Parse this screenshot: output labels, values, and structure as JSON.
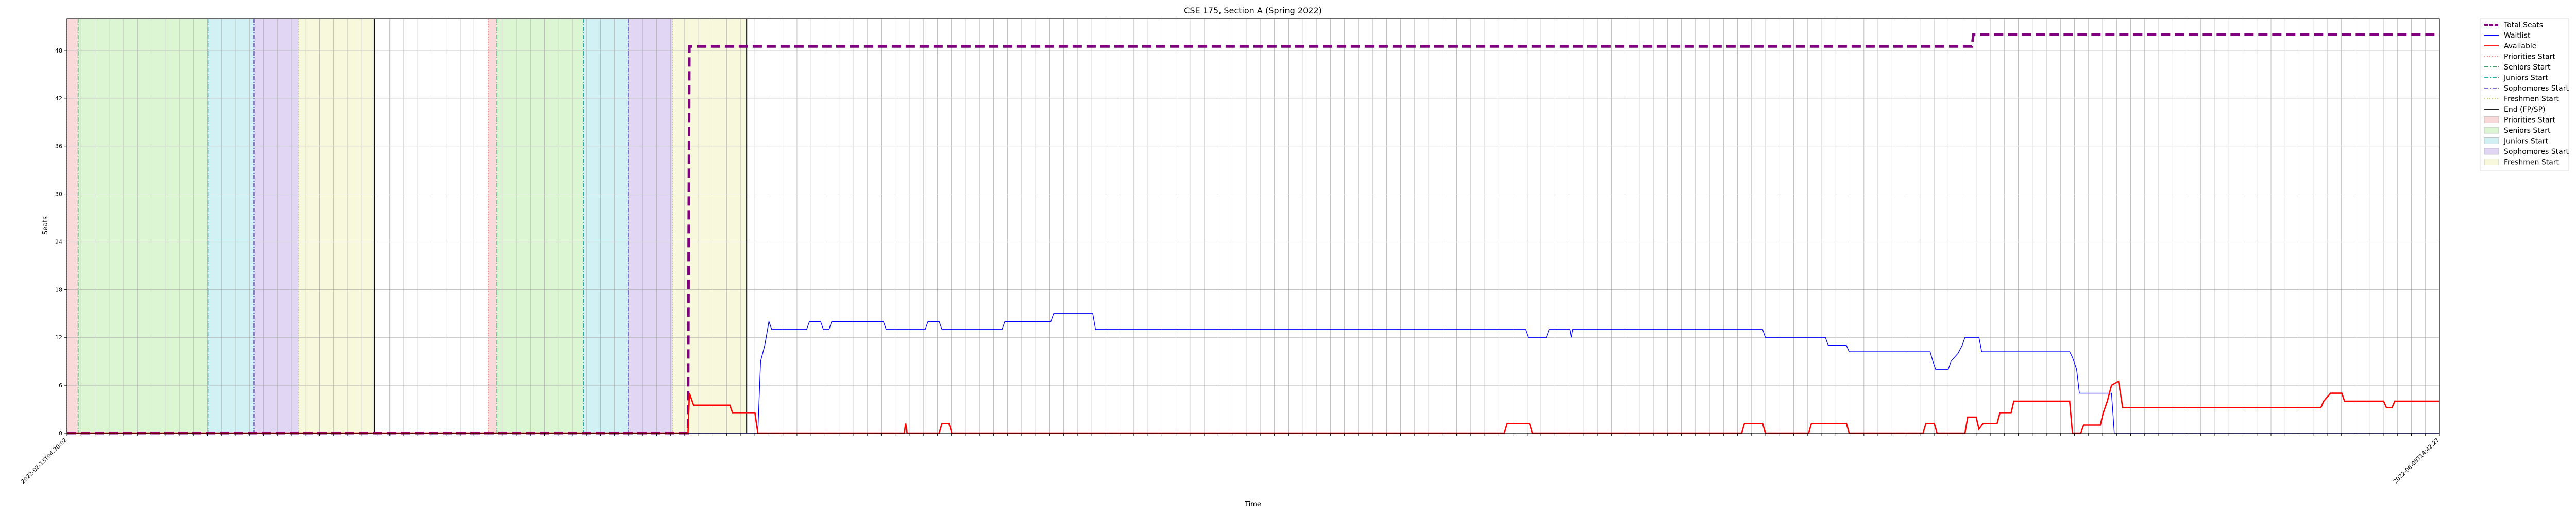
{
  "chart_data": {
    "type": "line",
    "title": "CSE 175, Section A (Spring 2022)",
    "xlabel": "Time",
    "ylabel": "Seats",
    "ylim": [
      0,
      52
    ],
    "yticks": [
      0,
      6,
      12,
      18,
      24,
      30,
      36,
      42,
      48
    ],
    "grid": true,
    "legend_placement": "outside-right",
    "legend": [
      {
        "label": "Total Seats",
        "kind": "line",
        "color": "#800080",
        "dash": "dashed",
        "heavy": true
      },
      {
        "label": "Waitlist",
        "kind": "line",
        "color": "#0000ff"
      },
      {
        "label": "Available",
        "kind": "line",
        "color": "#ff0000"
      },
      {
        "label": "Priorities Start",
        "kind": "line",
        "color": "#ff8080",
        "dash": "dotted"
      },
      {
        "label": "Seniors Start",
        "kind": "line",
        "color": "#2e8b57",
        "dash": "dashdot"
      },
      {
        "label": "Juniors Start",
        "kind": "line",
        "color": "#20b2aa",
        "dash": "dashdot"
      },
      {
        "label": "Sophomores Start",
        "kind": "line",
        "color": "#6a5acd",
        "dash": "dashdot"
      },
      {
        "label": "Freshmen Start",
        "kind": "line",
        "color": "#cccc66",
        "dash": "dotted"
      },
      {
        "label": "End (FP/SP)",
        "kind": "line",
        "color": "#000000"
      },
      {
        "label": "Priorities Start",
        "kind": "patch",
        "color": "#f9d9d9"
      },
      {
        "label": "Seniors Start",
        "kind": "patch",
        "color": "#dcf5d2"
      },
      {
        "label": "Juniors Start",
        "kind": "patch",
        "color": "#d2f1f5"
      },
      {
        "label": "Sophomores Start",
        "kind": "patch",
        "color": "#e1d7f5"
      },
      {
        "label": "Freshmen Start",
        "kind": "patch",
        "color": "#f8f8dc"
      }
    ],
    "x_tick_count": 170,
    "x_tick_first": "2022-02-13T04:30:02",
    "x_tick_last": "2022-06-08T14:42:27",
    "x_extent": [
      0,
      170
    ],
    "phases": [
      {
        "group": "pass-1",
        "priorities": [
          0,
          0.8
        ],
        "seniors": [
          0.8,
          10.1
        ],
        "juniors": [
          10.1,
          13.4
        ],
        "sophomores": [
          13.4,
          16.6
        ],
        "freshmen": [
          16.6,
          22.0
        ],
        "end": 22.0
      },
      {
        "group": "pass-2",
        "priorities": [
          30.2,
          30.8
        ],
        "seniors": [
          30.8,
          37.0
        ],
        "juniors": [
          37.0,
          40.2
        ],
        "sophomores": [
          40.2,
          43.4
        ],
        "freshmen": [
          43.4,
          48.7
        ],
        "end": 48.7
      }
    ],
    "series": [
      {
        "name": "Total Seats",
        "color": "#800080",
        "points": [
          [
            0,
            0
          ],
          [
            44.5,
            0
          ],
          [
            44.6,
            48.5
          ],
          [
            136.5,
            48.5
          ],
          [
            136.6,
            50
          ],
          [
            170,
            50
          ]
        ]
      },
      {
        "name": "Waitlist",
        "color": "#0000ff",
        "points": [
          [
            0,
            0
          ],
          [
            49.5,
            0
          ],
          [
            49.7,
            9
          ],
          [
            50,
            11
          ],
          [
            50.3,
            14
          ],
          [
            50.5,
            13
          ],
          [
            53,
            13
          ],
          [
            53.2,
            14
          ],
          [
            54,
            14
          ],
          [
            54.2,
            13
          ],
          [
            54.6,
            13
          ],
          [
            54.8,
            14
          ],
          [
            58.5,
            14
          ],
          [
            58.7,
            13
          ],
          [
            61.5,
            13
          ],
          [
            61.7,
            14
          ],
          [
            62.5,
            14
          ],
          [
            62.7,
            13
          ],
          [
            67,
            13
          ],
          [
            67.2,
            14
          ],
          [
            70.5,
            14
          ],
          [
            70.7,
            15
          ],
          [
            73.5,
            15
          ],
          [
            73.7,
            13
          ],
          [
            104.5,
            13
          ],
          [
            104.7,
            12
          ],
          [
            106,
            12
          ],
          [
            106.2,
            13
          ],
          [
            107.7,
            13
          ],
          [
            107.8,
            12
          ],
          [
            107.9,
            13
          ],
          [
            121.5,
            13
          ],
          [
            121.7,
            12
          ],
          [
            126,
            12
          ],
          [
            126.2,
            11
          ],
          [
            127.5,
            11
          ],
          [
            127.7,
            10.2
          ],
          [
            133.5,
            10.2
          ],
          [
            133.7,
            9
          ],
          [
            133.9,
            8
          ],
          [
            134.8,
            8
          ],
          [
            135,
            9
          ],
          [
            135.5,
            10
          ],
          [
            135.8,
            11
          ],
          [
            136,
            12
          ],
          [
            137,
            12
          ],
          [
            137.2,
            10.2
          ],
          [
            143.5,
            10.2
          ],
          [
            143.7,
            9.5
          ],
          [
            144,
            8
          ],
          [
            144.2,
            5
          ],
          [
            146.5,
            5
          ],
          [
            146.7,
            0
          ],
          [
            170,
            0
          ]
        ]
      },
      {
        "name": "Available",
        "color": "#ff0000",
        "points": [
          [
            0,
            0
          ],
          [
            44.5,
            0
          ],
          [
            44.6,
            5
          ],
          [
            44.9,
            3.5
          ],
          [
            47.5,
            3.5
          ],
          [
            47.7,
            2.5
          ],
          [
            49.3,
            2.5
          ],
          [
            49.5,
            0
          ],
          [
            60,
            0
          ],
          [
            60.1,
            1.2
          ],
          [
            60.2,
            0
          ],
          [
            62.5,
            0
          ],
          [
            62.7,
            1.2
          ],
          [
            63.2,
            1.2
          ],
          [
            63.4,
            0
          ],
          [
            103,
            0
          ],
          [
            103.2,
            1.2
          ],
          [
            104.8,
            1.2
          ],
          [
            105,
            0
          ],
          [
            120,
            0
          ],
          [
            120.2,
            1.2
          ],
          [
            121.5,
            1.2
          ],
          [
            121.7,
            0
          ],
          [
            124.8,
            0
          ],
          [
            125,
            1.2
          ],
          [
            127.5,
            1.2
          ],
          [
            127.7,
            0
          ],
          [
            133,
            0
          ],
          [
            133.2,
            1.2
          ],
          [
            133.8,
            1.2
          ],
          [
            134,
            0
          ],
          [
            136,
            0
          ],
          [
            136.2,
            2
          ],
          [
            136.8,
            2
          ],
          [
            137,
            0.5
          ],
          [
            137.3,
            1.2
          ],
          [
            138.3,
            1.2
          ],
          [
            138.5,
            2.5
          ],
          [
            139.3,
            2.5
          ],
          [
            139.5,
            4
          ],
          [
            143.5,
            4
          ],
          [
            143.7,
            0
          ],
          [
            144.3,
            0
          ],
          [
            144.5,
            1
          ],
          [
            145.7,
            1
          ],
          [
            145.9,
            2.5
          ],
          [
            146.2,
            4
          ],
          [
            146.5,
            6
          ],
          [
            147,
            6.5
          ],
          [
            147.3,
            3.2
          ],
          [
            161.5,
            3.2
          ],
          [
            161.7,
            4
          ],
          [
            162.2,
            5
          ],
          [
            163,
            5
          ],
          [
            163.2,
            4
          ],
          [
            166,
            4
          ],
          [
            166.2,
            3.2
          ],
          [
            166.6,
            3.2
          ],
          [
            166.8,
            4
          ],
          [
            170,
            4
          ]
        ]
      }
    ]
  }
}
